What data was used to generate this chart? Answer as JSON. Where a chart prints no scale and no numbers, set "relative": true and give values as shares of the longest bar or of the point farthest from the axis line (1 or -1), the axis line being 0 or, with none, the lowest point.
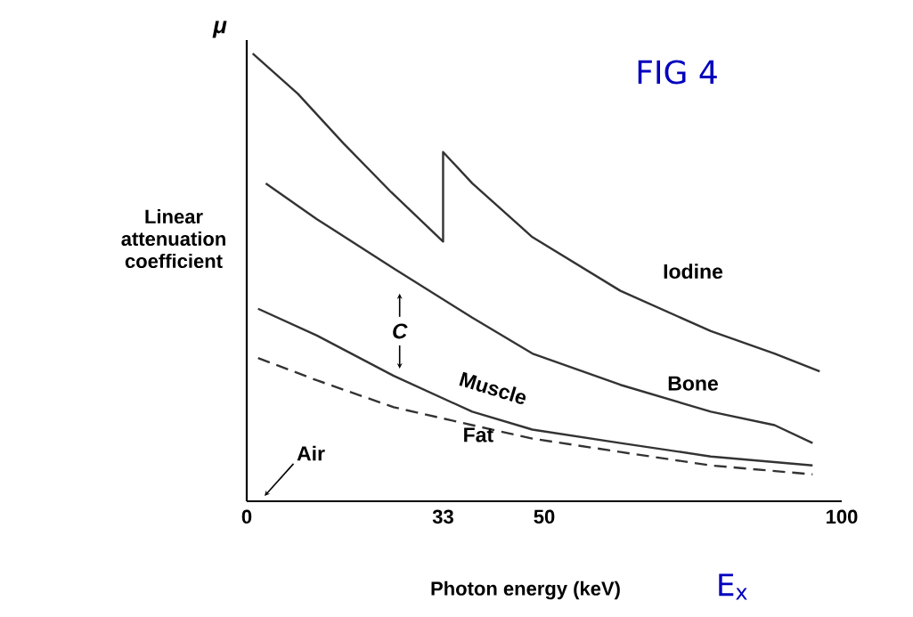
{
  "chart_data": {
    "type": "line",
    "relative": true,
    "title": "FIG 4",
    "xlabel": "Photon energy (keV)",
    "ylabel": "Linear attenuation coefficient",
    "xlim": [
      0,
      100
    ],
    "xticks": [
      0,
      33,
      50,
      100
    ],
    "grid": false,
    "legend": false,
    "marker": "none",
    "series": [
      {
        "name": "Iodine",
        "color": "#333333",
        "line_style": "solid",
        "x": [
          1,
          8.6,
          16.2,
          24.3,
          33,
          33,
          37.9,
          48,
          62.8,
          78,
          88.7,
          96.3
        ],
        "values": [
          1.0,
          0.91,
          0.8,
          0.69,
          0.58,
          0.78,
          0.71,
          0.59,
          0.47,
          0.38,
          0.33,
          0.29
        ]
      },
      {
        "name": "Bone",
        "color": "#333333",
        "line_style": "solid",
        "x": [
          3.2,
          11.8,
          24.7,
          37.9,
          48,
          62.8,
          78,
          88.7,
          95.1
        ],
        "values": [
          0.71,
          0.63,
          0.52,
          0.41,
          0.33,
          0.26,
          0.2,
          0.17,
          0.13
        ]
      },
      {
        "name": "Muscle",
        "color": "#333333",
        "line_style": "solid",
        "x": [
          1.9,
          11.8,
          24.7,
          37.9,
          48,
          62.8,
          78,
          95.1
        ],
        "values": [
          0.43,
          0.37,
          0.28,
          0.2,
          0.16,
          0.13,
          0.1,
          0.08
        ]
      },
      {
        "name": "Fat",
        "color": "#333333",
        "line_style": "dashed",
        "x": [
          1.9,
          11.8,
          24.7,
          37.9,
          48,
          62.8,
          78,
          95.1
        ],
        "values": [
          0.32,
          0.27,
          0.21,
          0.17,
          0.14,
          0.11,
          0.08,
          0.06
        ]
      }
    ],
    "annotations": [
      "μ",
      "Air",
      "C",
      "E$_{x}$"
    ]
  }
}
